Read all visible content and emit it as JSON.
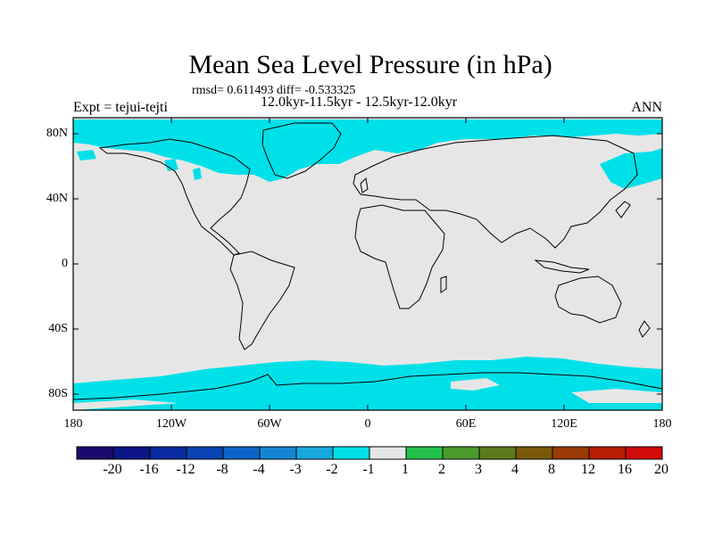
{
  "title": "Mean Sea Level Pressure (in hPa)",
  "stats": "rmsd= 0.611493 diff= -0.533325",
  "period": "12.0kyr-11.5kyr - 12.5kyr-12.0kyr",
  "experiment": "Expt = tejui-tejti",
  "season": "ANN",
  "lat_labels": [
    "80N",
    "40N",
    "0",
    "40S",
    "80S"
  ],
  "lon_labels": [
    "180",
    "120W",
    "60W",
    "0",
    "60E",
    "120E",
    "180"
  ],
  "colorbar": {
    "labels": [
      "-20",
      "-16",
      "-12",
      "-8",
      "-4",
      "-3",
      "-2",
      "-1",
      "1",
      "2",
      "3",
      "4",
      "8",
      "12",
      "16",
      "20"
    ],
    "colors": [
      "#1a0a6e",
      "#0b1585",
      "#0a2aa0",
      "#0a44b3",
      "#0a64c8",
      "#1286d2",
      "#18a8dc",
      "#00e0e8",
      "#e6e6e6",
      "#22c04a",
      "#4a9a2e",
      "#5c7a1a",
      "#7a5a0a",
      "#9a3a06",
      "#b81e04",
      "#d20a0a"
    ]
  },
  "map_colors": {
    "background": "#e6e6e6",
    "anomaly": "#00e0e8",
    "coast": "#000000"
  }
}
